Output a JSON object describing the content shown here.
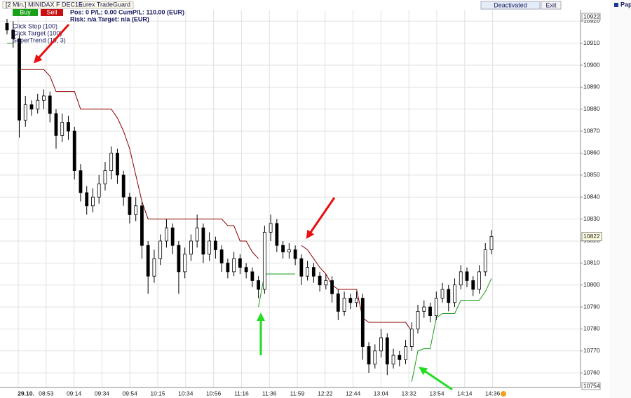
{
  "toolbar": {
    "title": "[2 Min.] MINIDAX F DEC15",
    "module": "Eurex TradeGuard",
    "buy": "Buy",
    "sell": "Sell",
    "position": "Pos: 0  P/L: 0.00  CumP/L: 110.00 (EUR)",
    "risk": "Risk: n/a  Target: n/a (EUR)",
    "status": "Deactivated",
    "exit": "Exit",
    "account": "Paper"
  },
  "legend": [
    "Click Stop  (100)",
    "Click Target  (100)"
  ],
  "chart_data": {
    "type": "candlestick",
    "xlabels": [
      "29.10.",
      "08:53",
      "09:14",
      "09:34",
      "09:54",
      "10:15",
      "10:34",
      "10:56",
      "11:16",
      "11:36",
      "11:59",
      "12:22",
      "12:44",
      "13:04",
      "13:32",
      "13:54",
      "14:14",
      "14:36"
    ],
    "ylim": [
      10754,
      10922
    ],
    "yticks": [
      10760,
      10770,
      10780,
      10790,
      10800,
      10810,
      10820,
      10830,
      10840,
      10850,
      10860,
      10870,
      10880,
      10890,
      10900,
      10910,
      10920
    ],
    "grid": true,
    "last_price": 10822,
    "open": [
      10919,
      10916,
      10912,
      10875,
      10882,
      10880,
      10884,
      10886,
      10878,
      10868,
      10874,
      10870,
      10852,
      10842,
      10836,
      10840,
      10846,
      10852,
      10860,
      10850,
      10840,
      10832,
      10836,
      10818,
      10804,
      10812,
      10820,
      10826,
      10818,
      10806,
      10814,
      10820,
      10826,
      10814,
      10820,
      10816,
      10810,
      10806,
      10812,
      10808,
      10806,
      10802,
      10798,
      10824,
      10828,
      10818,
      10815,
      10816,
      10812,
      10804,
      10808,
      10804,
      10800,
      10802,
      10796,
      10788,
      10794,
      10792,
      10794,
      10772,
      10764,
      10770,
      10776,
      10764,
      10768,
      10766,
      10772,
      10780,
      10788,
      10790,
      10786,
      10794,
      10798,
      10792,
      10800,
      10806,
      10802,
      10798,
      10806,
      10816
    ],
    "high": [
      10921,
      10920,
      10914,
      10886,
      10884,
      10887,
      10889,
      10888,
      10880,
      10878,
      10877,
      10872,
      10855,
      10845,
      10844,
      10850,
      10856,
      10863,
      10862,
      10852,
      10842,
      10840,
      10838,
      10820,
      10816,
      10823,
      10830,
      10828,
      10820,
      10817,
      10823,
      10832,
      10828,
      10824,
      10822,
      10818,
      10812,
      10815,
      10814,
      10810,
      10808,
      10804,
      10827,
      10832,
      10830,
      10820,
      10819,
      10818,
      10814,
      10811,
      10810,
      10806,
      10805,
      10804,
      10798,
      10797,
      10796,
      10797,
      10796,
      10774,
      10773,
      10780,
      10778,
      10771,
      10770,
      10775,
      10783,
      10791,
      10793,
      10792,
      10797,
      10801,
      10800,
      10803,
      10809,
      10808,
      10804,
      10809,
      10819,
      10825
    ],
    "low": [
      10914,
      10908,
      10867,
      10872,
      10877,
      10878,
      10880,
      10874,
      10862,
      10865,
      10866,
      10848,
      10838,
      10832,
      10833,
      10837,
      10843,
      10848,
      10846,
      10836,
      10828,
      10829,
      10812,
      10796,
      10801,
      10809,
      10817,
      10814,
      10796,
      10803,
      10811,
      10817,
      10810,
      10811,
      10812,
      10806,
      10803,
      10804,
      10805,
      10803,
      10799,
      10794,
      10796,
      10820,
      10815,
      10812,
      10812,
      10809,
      10800,
      10802,
      10801,
      10797,
      10798,
      10792,
      10784,
      10786,
      10789,
      10790,
      10766,
      10760,
      10762,
      10767,
      10759,
      10762,
      10763,
      10764,
      10770,
      10778,
      10785,
      10783,
      10784,
      10792,
      10788,
      10790,
      10798,
      10799,
      10795,
      10796,
      10804,
      10814
    ],
    "close": [
      10916,
      10912,
      10875,
      10882,
      10880,
      10884,
      10886,
      10878,
      10868,
      10874,
      10870,
      10852,
      10842,
      10836,
      10840,
      10846,
      10852,
      10860,
      10850,
      10840,
      10832,
      10836,
      10818,
      10804,
      10812,
      10820,
      10826,
      10818,
      10806,
      10814,
      10820,
      10826,
      10814,
      10820,
      10816,
      10810,
      10806,
      10812,
      10808,
      10806,
      10802,
      10798,
      10824,
      10828,
      10818,
      10815,
      10816,
      10812,
      10804,
      10808,
      10804,
      10800,
      10802,
      10796,
      10788,
      10794,
      10792,
      10794,
      10772,
      10764,
      10770,
      10776,
      10764,
      10768,
      10766,
      10772,
      10780,
      10788,
      10790,
      10786,
      10794,
      10798,
      10792,
      10800,
      10806,
      10802,
      10798,
      10806,
      10816,
      10822
    ],
    "series": [
      {
        "name": "SuperTrend (10, 3)",
        "color": "#8b0000",
        "values": [
          null,
          null,
          10898,
          10898,
          10898,
          10898,
          10898,
          10895,
          10888,
          10888,
          10888,
          10888,
          10880,
          10880,
          10880,
          10880,
          10880,
          10880,
          10876,
          10870,
          10862,
          10850,
          10838,
          10830,
          10830,
          10830,
          10830,
          10830,
          10830,
          10830,
          10830,
          10830,
          10830,
          10830,
          10830,
          10830,
          10827,
          10827,
          10820,
          10820,
          10815,
          10812,
          null,
          null,
          null,
          null,
          null,
          null,
          10818,
          10816,
          10812,
          10808,
          10805,
          10800,
          10798,
          10798,
          10798,
          10798,
          10785,
          10783,
          10783,
          10783,
          10783,
          10783,
          10783,
          10783,
          10779,
          null,
          null,
          null,
          null,
          null,
          null,
          null,
          null,
          null,
          null,
          null,
          null,
          null
        ]
      },
      {
        "color": "#1a9a1a",
        "values": [
          10910,
          10910,
          null,
          null,
          null,
          null,
          null,
          null,
          null,
          null,
          null,
          null,
          null,
          null,
          null,
          null,
          null,
          null,
          null,
          null,
          null,
          null,
          null,
          null,
          null,
          null,
          null,
          null,
          null,
          null,
          null,
          null,
          null,
          null,
          null,
          null,
          null,
          null,
          null,
          null,
          null,
          10790,
          10805,
          10805,
          10805,
          10805,
          10805,
          10805,
          null,
          null,
          null,
          null,
          null,
          null,
          null,
          null,
          null,
          null,
          null,
          null,
          null,
          null,
          null,
          null,
          null,
          null,
          10756,
          10770,
          10771,
          10771,
          10785,
          10787,
          10787,
          10787,
          10793,
          10793,
          10793,
          10793,
          10797,
          10803
        ]
      }
    ]
  }
}
